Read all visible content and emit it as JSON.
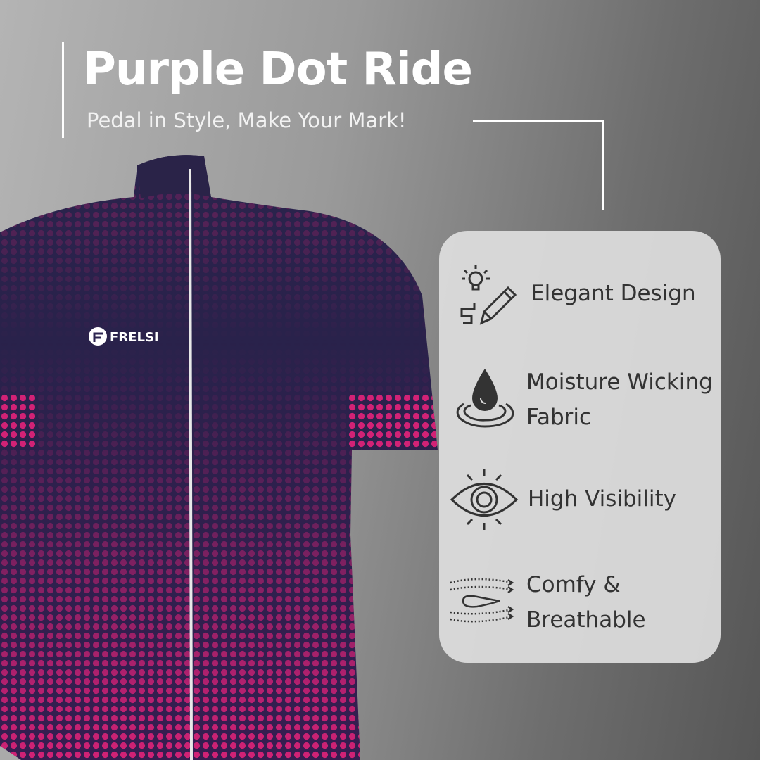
{
  "header": {
    "title": "Purple Dot Ride",
    "subtitle": "Pedal in Style, Make Your Mark!"
  },
  "product": {
    "brand_logo_text": "FRELSI",
    "colors": {
      "base": "#2c2550",
      "dots": "#e0257e",
      "zipper": "#e8e8e8"
    }
  },
  "features": [
    {
      "icon": "lightbulb-pencil-icon",
      "label_lines": [
        "Elegant Design"
      ]
    },
    {
      "icon": "water-drop-icon",
      "label_lines": [
        "Moisture Wicking",
        "Fabric"
      ]
    },
    {
      "icon": "eye-icon",
      "label_lines": [
        "High Visibility"
      ]
    },
    {
      "icon": "airflow-icon",
      "label_lines": [
        "Comfy &",
        "Breathable"
      ]
    }
  ]
}
